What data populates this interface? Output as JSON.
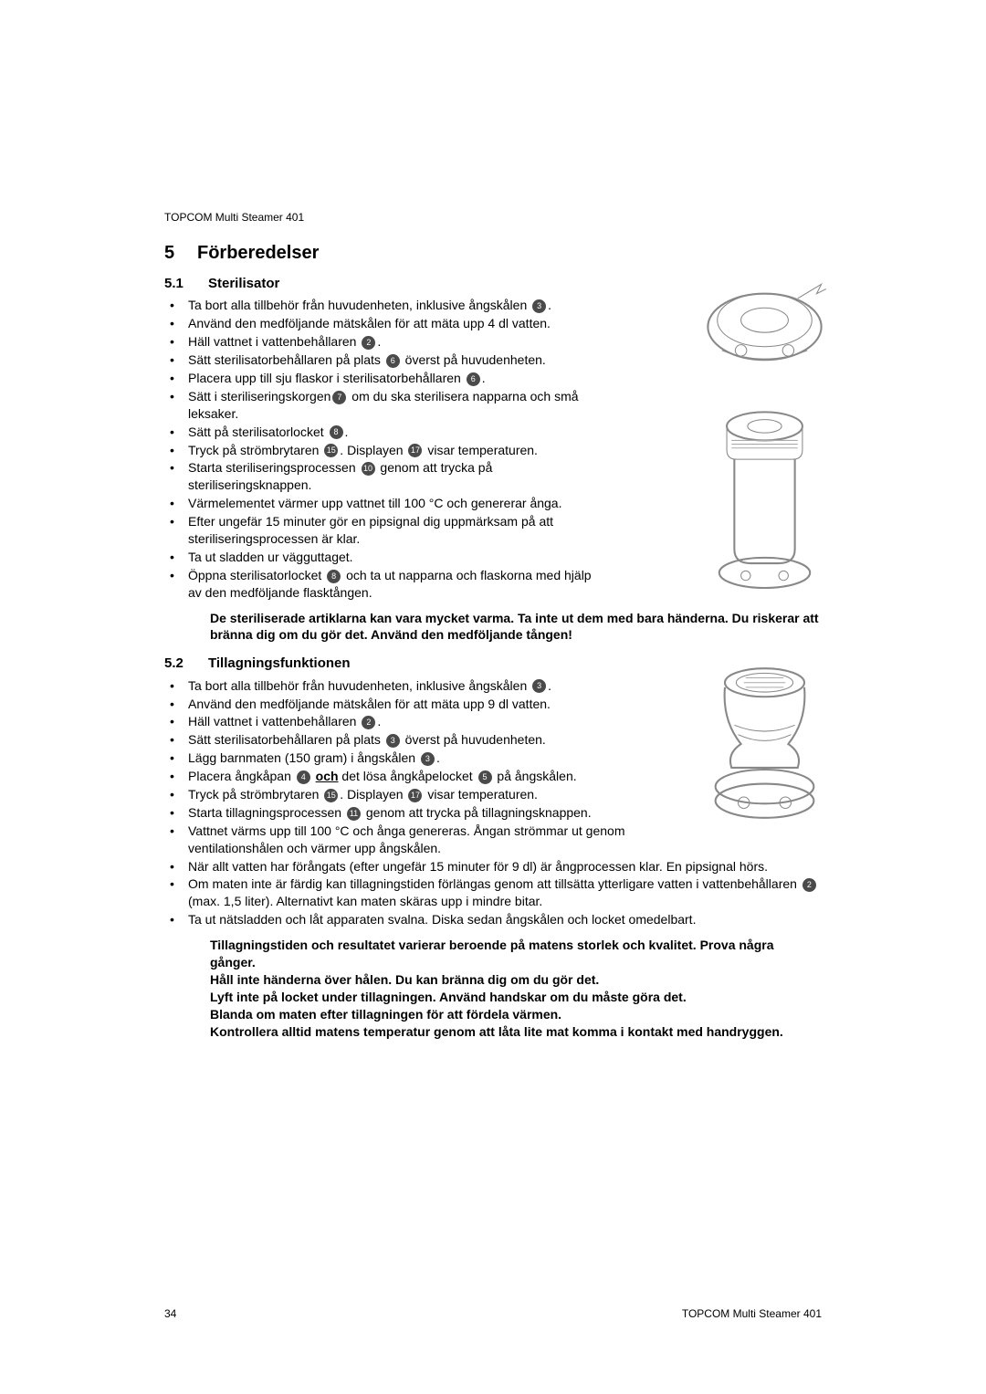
{
  "header": "TOPCOM Multi Steamer 401",
  "chapter": {
    "num": "5",
    "title": "Förberedelser"
  },
  "s51": {
    "num": "5.1",
    "title": "Sterilisator",
    "items": [
      {
        "t": "Ta bort alla tillbehör från huvudenheten, inklusive ångskålen ",
        "c": "3",
        "after": "."
      },
      {
        "t": "Använd den medföljande mätskålen för att mäta upp 4 dl vatten."
      },
      {
        "t": "Häll vattnet i vattenbehållaren ",
        "c": "2",
        "after": "."
      },
      {
        "t": "Sätt sterilisatorbehållaren på plats ",
        "c": "6",
        "after": " överst på huvudenheten."
      },
      {
        "t": "Placera upp till sju flaskor i sterilisatorbehållaren ",
        "c": "6",
        "after": "."
      },
      {
        "t": "Sätt i steriliseringskorgen",
        "c": "7",
        "after": " om du ska sterilisera napparna och små leksaker."
      },
      {
        "t": "Sätt på sterilisatorlocket ",
        "c": "8",
        "after": "."
      },
      {
        "t": "Tryck på strömbrytaren ",
        "c": "15",
        "after": ". Displayen ",
        "c2": "17",
        "after2": " visar temperaturen."
      },
      {
        "t": "Starta steriliseringsprocessen ",
        "c": "10",
        "after": " genom att trycka på steriliseringsknappen."
      },
      {
        "t": "Värmelementet värmer upp vattnet till 100 °C och genererar ånga."
      },
      {
        "t": "Efter ungefär 15 minuter gör en pipsignal dig uppmärksam på att steriliseringsprocessen är klar."
      },
      {
        "t": "Ta ut sladden ur vägguttaget."
      },
      {
        "t": "Öppna sterilisatorlocket ",
        "c": "8",
        "after": " och ta ut napparna och flaskorna med hjälp av den medföljande flasktången."
      }
    ],
    "warn": "De steriliserade artiklarna kan vara mycket varma. Ta inte ut dem med bara händerna. Du riskerar att bränna dig om du gör det. Använd den medföljande tången!"
  },
  "s52": {
    "num": "5.2",
    "title": "Tillagningsfunktionen",
    "items": [
      {
        "t": "Ta bort alla tillbehör från huvudenheten, inklusive ångskålen ",
        "c": "3",
        "after": "."
      },
      {
        "t": "Använd den medföljande mätskålen för att mäta upp 9 dl vatten."
      },
      {
        "t": "Häll vattnet i vattenbehållaren ",
        "c": "2",
        "after": "."
      },
      {
        "t": "Sätt sterilisatorbehållaren på plats ",
        "c": "3",
        "after": " överst på huvudenheten."
      },
      {
        "t": "Lägg barnmaten (150 gram) i ångskålen ",
        "c": "3",
        "after": "."
      },
      {
        "t": "Placera ångkåpan ",
        "c": "4",
        "mid": " ",
        "boldU": "och",
        "mid2": " det lösa ångkåpelocket ",
        "c2": "5",
        "after2": " på ångskålen."
      },
      {
        "t": "Tryck på strömbrytaren ",
        "c": "15",
        "after": ". Displayen ",
        "c2": "17",
        "after2": " visar temperaturen."
      },
      {
        "t": "Starta tillagningsprocessen ",
        "c": "11",
        "after": " genom att trycka på tillagningsknappen."
      },
      {
        "t": "Vattnet värms upp till 100 °C och ånga genereras. Ångan strömmar ut genom ventilationshålen och värmer upp ångskålen."
      },
      {
        "t": "När allt vatten har förångats (efter ungefär 15 minuter för 9 dl) är ångprocessen klar. En pipsignal hörs.",
        "wide": true
      },
      {
        "t": "Om maten inte är färdig kan tillagningstiden förlängas genom att tillsätta ytterligare vatten i vattenbehållaren ",
        "c": "2",
        "after": " (max. 1,5 liter). Alternativt kan maten skäras upp i mindre bitar.",
        "wide": true
      },
      {
        "t": "Ta ut nätsladden och låt apparaten svalna. Diska sedan ångskålen och locket omedelbart.",
        "wide": true
      }
    ],
    "warn": [
      "Tillagningstiden och resultatet varierar beroende på matens storlek och kvalitet. Prova några gånger.",
      "Håll inte händerna över hålen. Du kan bränna dig om du gör det.",
      "Lyft inte på locket under tillagningen. Använd handskar om du måste göra det.",
      "Blanda om maten efter tillagningen för att fördela värmen.",
      "Kontrollera alltid matens temperatur genom att låta lite mat komma i kontakt med handryggen."
    ]
  },
  "footer": {
    "page": "34",
    "right": "TOPCOM Multi Steamer 401"
  }
}
